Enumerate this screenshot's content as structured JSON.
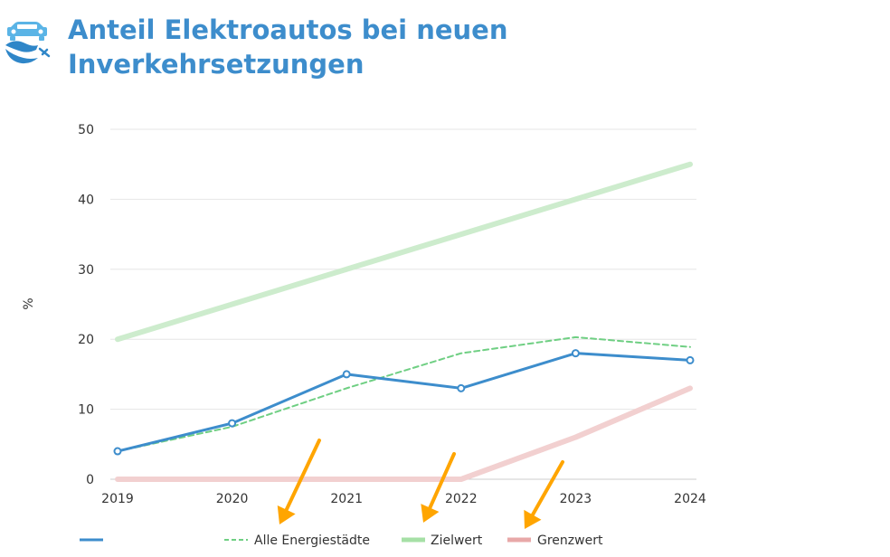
{
  "title": {
    "line1": "Anteil Elektroautos bei neuen",
    "line2": "Inverkehrsetzungen",
    "color": "#3d8dcc"
  },
  "header_icon": {
    "name": "electric-car-icon",
    "color": "#5ab4e6"
  },
  "chart_data": {
    "type": "line",
    "ylabel": "%",
    "ylim": [
      0,
      50
    ],
    "y_ticks": [
      0,
      10,
      20,
      30,
      40,
      50
    ],
    "x": [
      "2019",
      "2020",
      "2021",
      "2022",
      "2023",
      "2024"
    ],
    "grid": "horizontal",
    "legend_position": "bottom",
    "series": [
      {
        "name": "",
        "values": [
          4,
          8,
          15,
          13,
          18,
          17
        ],
        "color": "#3d8dcc",
        "style": "solid",
        "markers": true
      },
      {
        "name": "Alle Energiestädte",
        "values": [
          4,
          7.5,
          13,
          18,
          20.3,
          18.9
        ],
        "color": "#6fcf83",
        "style": "dashed",
        "markers": false
      },
      {
        "name": "Zielwert",
        "values": [
          20,
          25,
          30,
          35,
          40,
          45
        ],
        "color": "#cdeccd",
        "legend_color": "#a6e0a6",
        "style": "thick",
        "markers": false
      },
      {
        "name": "Grenzwert",
        "values": [
          0,
          0,
          0,
          0,
          6,
          13
        ],
        "color": "#f2d0d0",
        "legend_color": "#e8a8a8",
        "style": "thick",
        "markers": false
      }
    ],
    "annotations": [
      {
        "type": "arrow",
        "color": "#ffa500",
        "target": "legend-alle-energiestaedte"
      },
      {
        "type": "arrow",
        "color": "#ffa500",
        "target": "legend-zielwert"
      },
      {
        "type": "arrow",
        "color": "#ffa500",
        "target": "legend-grenzwert"
      }
    ]
  }
}
